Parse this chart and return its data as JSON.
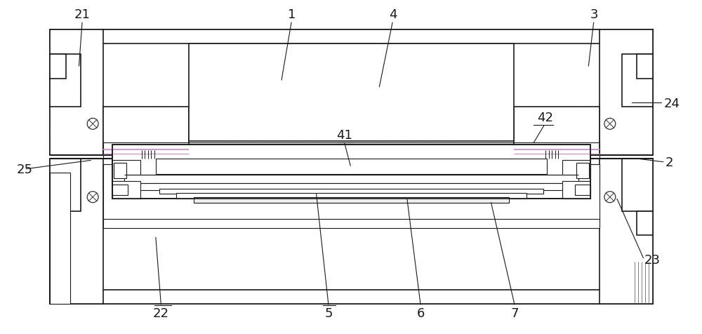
{
  "bg_color": "#ffffff",
  "line_color": "#1a1a1a",
  "fig_width": 10.0,
  "fig_height": 4.77,
  "purple": "#c8a0c8",
  "gray_fill": "#e8e8e8",
  "white_fill": "#ffffff",
  "label_fontsize": 13
}
